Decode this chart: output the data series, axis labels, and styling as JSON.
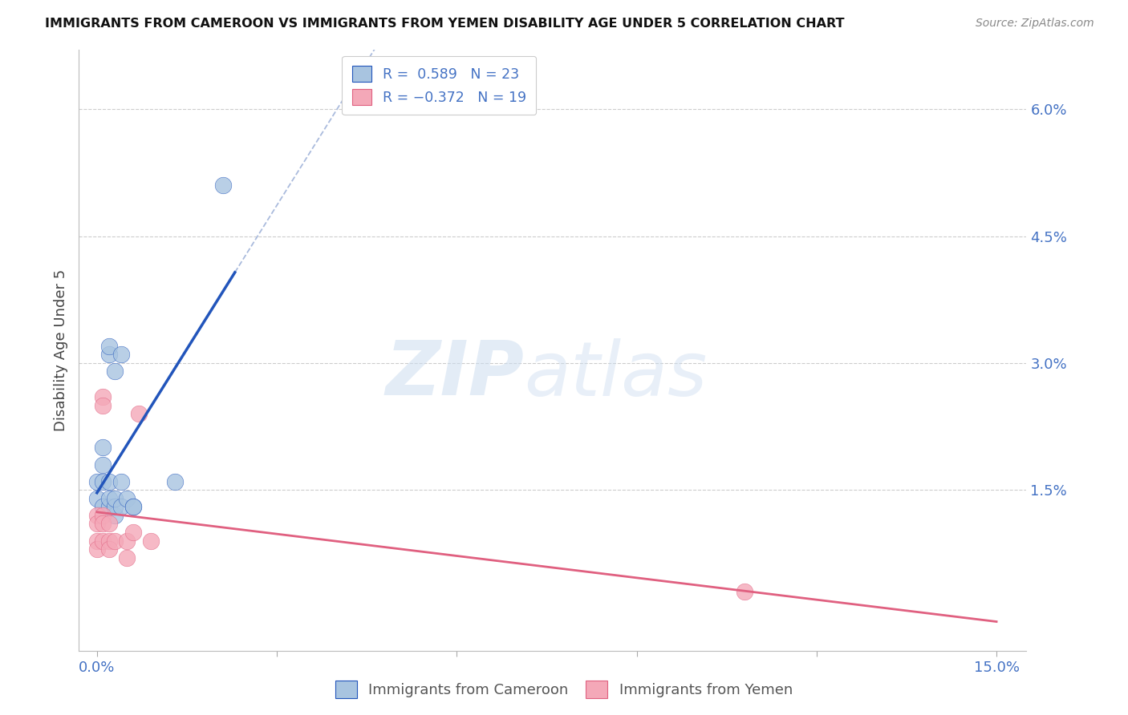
{
  "title": "IMMIGRANTS FROM CAMEROON VS IMMIGRANTS FROM YEMEN DISABILITY AGE UNDER 5 CORRELATION CHART",
  "source": "Source: ZipAtlas.com",
  "ylabel": "Disability Age Under 5",
  "x_ticks": [
    0.0,
    0.03,
    0.06,
    0.09,
    0.12,
    0.15
  ],
  "y_ticks": [
    0.0,
    0.015,
    0.03,
    0.045,
    0.06
  ],
  "xlim": [
    -0.003,
    0.155
  ],
  "ylim": [
    -0.004,
    0.067
  ],
  "cameroon_R": 0.589,
  "cameroon_N": 23,
  "yemen_R": -0.372,
  "yemen_N": 19,
  "cameroon_color": "#a8c4e0",
  "yemen_color": "#f4a8b8",
  "trendline_cameroon_color": "#2255bb",
  "trendline_yemen_color": "#e06080",
  "watermark_zip": "ZIP",
  "watermark_atlas": "atlas",
  "cameroon_points": [
    [
      0.0,
      0.014
    ],
    [
      0.0,
      0.016
    ],
    [
      0.001,
      0.013
    ],
    [
      0.001,
      0.016
    ],
    [
      0.001,
      0.018
    ],
    [
      0.001,
      0.02
    ],
    [
      0.002,
      0.013
    ],
    [
      0.002,
      0.014
    ],
    [
      0.002,
      0.016
    ],
    [
      0.002,
      0.031
    ],
    [
      0.002,
      0.032
    ],
    [
      0.003,
      0.012
    ],
    [
      0.003,
      0.013
    ],
    [
      0.003,
      0.014
    ],
    [
      0.003,
      0.029
    ],
    [
      0.004,
      0.013
    ],
    [
      0.004,
      0.016
    ],
    [
      0.004,
      0.031
    ],
    [
      0.005,
      0.014
    ],
    [
      0.006,
      0.013
    ],
    [
      0.006,
      0.013
    ],
    [
      0.013,
      0.016
    ],
    [
      0.021,
      0.051
    ]
  ],
  "yemen_points": [
    [
      0.0,
      0.012
    ],
    [
      0.0,
      0.011
    ],
    [
      0.0,
      0.009
    ],
    [
      0.0,
      0.008
    ],
    [
      0.001,
      0.026
    ],
    [
      0.001,
      0.025
    ],
    [
      0.001,
      0.012
    ],
    [
      0.001,
      0.011
    ],
    [
      0.001,
      0.009
    ],
    [
      0.002,
      0.011
    ],
    [
      0.002,
      0.009
    ],
    [
      0.002,
      0.008
    ],
    [
      0.003,
      0.009
    ],
    [
      0.005,
      0.007
    ],
    [
      0.005,
      0.009
    ],
    [
      0.006,
      0.01
    ],
    [
      0.007,
      0.024
    ],
    [
      0.009,
      0.009
    ],
    [
      0.108,
      0.003
    ]
  ]
}
